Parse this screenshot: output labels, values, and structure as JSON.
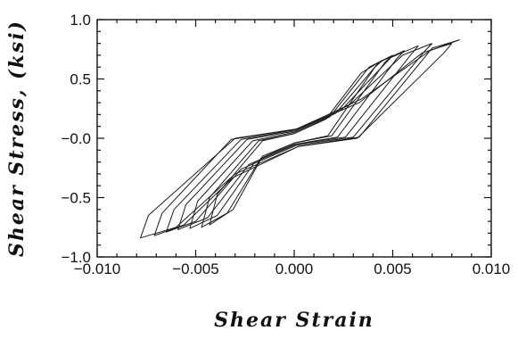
{
  "chart_data": {
    "type": "line",
    "title": "",
    "xlabel": "Shear Strain",
    "ylabel": "Shear Stress, (ksi)",
    "xlim": [
      -0.01,
      0.01
    ],
    "ylim": [
      -1.0,
      1.0
    ],
    "xticks": [
      -0.01,
      -0.005,
      0.0,
      0.005,
      0.01
    ],
    "xtick_labels": [
      "−0.010",
      "−0.005",
      "0.000",
      "0.005",
      "0.010"
    ],
    "yticks": [
      -1.0,
      -0.5,
      0.0,
      0.5,
      1.0
    ],
    "ytick_labels": [
      "−1.0",
      "−0.5",
      "−0.0",
      "0.5",
      "1.0"
    ],
    "grid": false,
    "legend": "none",
    "series": [
      {
        "x": [
          0.008,
          0.0065,
          0.0033,
          0.0002,
          -0.003,
          -0.0074,
          -0.0078,
          -0.006,
          -0.003,
          0.0002,
          0.0032,
          0.0076,
          0.008
        ],
        "y": [
          0.8,
          0.72,
          0.3,
          0.08,
          0.0,
          -0.65,
          -0.84,
          -0.75,
          -0.3,
          -0.07,
          0.0,
          0.72,
          0.8
        ]
      },
      {
        "x": [
          0.0084,
          0.0069,
          0.0034,
          0.0002,
          -0.0032,
          -0.0067,
          -0.0071,
          -0.0056,
          -0.0031,
          0.0002,
          0.0033,
          0.007,
          0.0084
        ],
        "y": [
          0.83,
          0.74,
          0.33,
          0.08,
          -0.01,
          -0.63,
          -0.82,
          -0.73,
          -0.33,
          -0.07,
          0.01,
          0.76,
          0.83
        ]
      },
      {
        "x": [
          0.007,
          0.0055,
          0.0028,
          0.0,
          -0.0027,
          -0.0061,
          -0.0065,
          -0.005,
          -0.0027,
          0.0001,
          0.003,
          0.0066,
          0.007
        ],
        "y": [
          0.8,
          0.7,
          0.28,
          0.07,
          -0.01,
          -0.6,
          -0.79,
          -0.7,
          -0.26,
          -0.06,
          0.01,
          0.73,
          0.8
        ]
      },
      {
        "x": [
          0.0063,
          0.0049,
          0.0024,
          0.0,
          -0.0024,
          -0.0055,
          -0.0059,
          -0.0044,
          -0.0023,
          0.0001,
          0.0026,
          0.0059,
          0.0063
        ],
        "y": [
          0.78,
          0.68,
          0.24,
          0.06,
          -0.01,
          -0.56,
          -0.77,
          -0.67,
          -0.22,
          -0.05,
          0.01,
          0.7,
          0.78
        ]
      },
      {
        "x": [
          0.0056,
          0.0043,
          0.0021,
          0.0,
          -0.0021,
          -0.0049,
          -0.0053,
          -0.0039,
          -0.002,
          0.0,
          0.0022,
          0.0052,
          0.0056
        ],
        "y": [
          0.74,
          0.64,
          0.21,
          0.05,
          -0.02,
          -0.53,
          -0.76,
          -0.65,
          -0.2,
          -0.05,
          0.01,
          0.67,
          0.74
        ]
      },
      {
        "x": [
          0.005,
          0.0038,
          0.0018,
          0.0,
          -0.0018,
          -0.0043,
          -0.0047,
          -0.0034,
          -0.0017,
          0.0,
          0.0019,
          0.0046,
          0.005
        ],
        "y": [
          0.7,
          0.6,
          0.18,
          0.04,
          -0.02,
          -0.5,
          -0.75,
          -0.63,
          -0.17,
          -0.04,
          0.02,
          0.64,
          0.7
        ]
      },
      {
        "x": [
          0.0045,
          0.0034,
          0.0016,
          0.0,
          -0.0016,
          -0.0039,
          -0.0043,
          -0.0031,
          -0.0016,
          0.0,
          0.0017,
          0.0041,
          0.0045
        ],
        "y": [
          0.66,
          0.55,
          0.16,
          0.04,
          -0.02,
          -0.47,
          -0.73,
          -0.6,
          -0.15,
          -0.04,
          0.02,
          0.6,
          0.66
        ]
      }
    ]
  }
}
